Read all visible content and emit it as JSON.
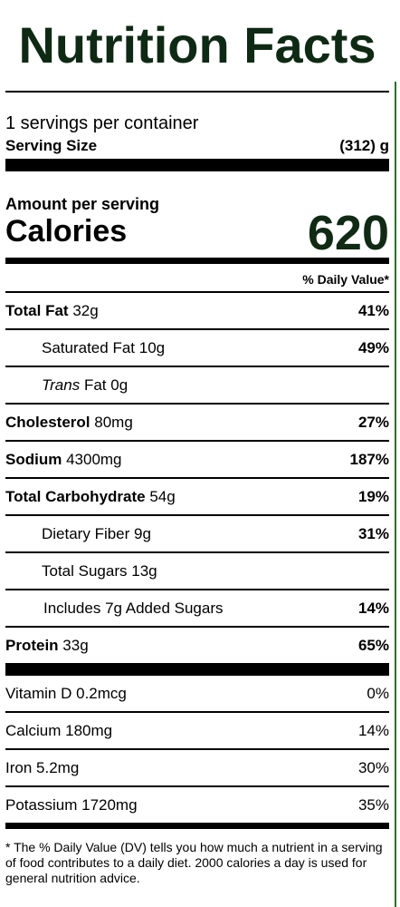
{
  "title": "Nutrition Facts",
  "servings_per_container": "1 servings per container",
  "serving_size": {
    "label": "Serving Size",
    "value": "(312) g"
  },
  "amount_per_serving": "Amount per serving",
  "calories": {
    "label": "Calories",
    "value": "620"
  },
  "daily_value_header": "% Daily Value*",
  "nutrients": [
    {
      "name": "Total Fat",
      "amount": "32g",
      "dv": "41%",
      "bold": true,
      "indent": false
    },
    {
      "name": "Saturated Fat",
      "amount": "10g",
      "dv": "49%",
      "bold": false,
      "indent": true
    },
    {
      "name": "Trans",
      "name_suffix": "Fat",
      "amount": "0g",
      "dv": "",
      "bold": false,
      "indent": true
    },
    {
      "name": "Cholesterol",
      "amount": "80mg",
      "dv": "27%",
      "bold": true,
      "indent": false
    },
    {
      "name": "Sodium",
      "amount": "4300mg",
      "dv": "187%",
      "bold": true,
      "indent": false
    },
    {
      "name": "Total Carbohydrate",
      "amount": "54g",
      "dv": "19%",
      "bold": true,
      "indent": false
    },
    {
      "name": "Dietary Fiber",
      "amount": "9g",
      "dv": "31%",
      "bold": false,
      "indent": true
    },
    {
      "name": "Total Sugars",
      "amount": "13g",
      "dv": "",
      "bold": false,
      "indent": true
    },
    {
      "name": "Includes",
      "amount": "7g Added Sugars",
      "dv": "14%",
      "bold": false,
      "indent": true
    },
    {
      "name": "Protein",
      "amount": "33g",
      "dv": "65%",
      "bold": true,
      "indent": false
    }
  ],
  "vitamins": [
    {
      "name": "Vitamin D",
      "amount": "0.2mcg",
      "dv": "0%"
    },
    {
      "name": "Calcium",
      "amount": "180mg",
      "dv": "14%"
    },
    {
      "name": "Iron",
      "amount": "5.2mg",
      "dv": "30%"
    },
    {
      "name": "Potassium",
      "amount": "1720mg",
      "dv": "35%"
    }
  ],
  "footnote": "* The % Daily Value (DV) tells you how much a nutrient in a serving of food contributes to a daily diet. 2000 calories a day is used for general nutrition advice.",
  "colors": {
    "title": "#0f2a14",
    "rule": "#000000",
    "edge": "#2c6e2c"
  }
}
